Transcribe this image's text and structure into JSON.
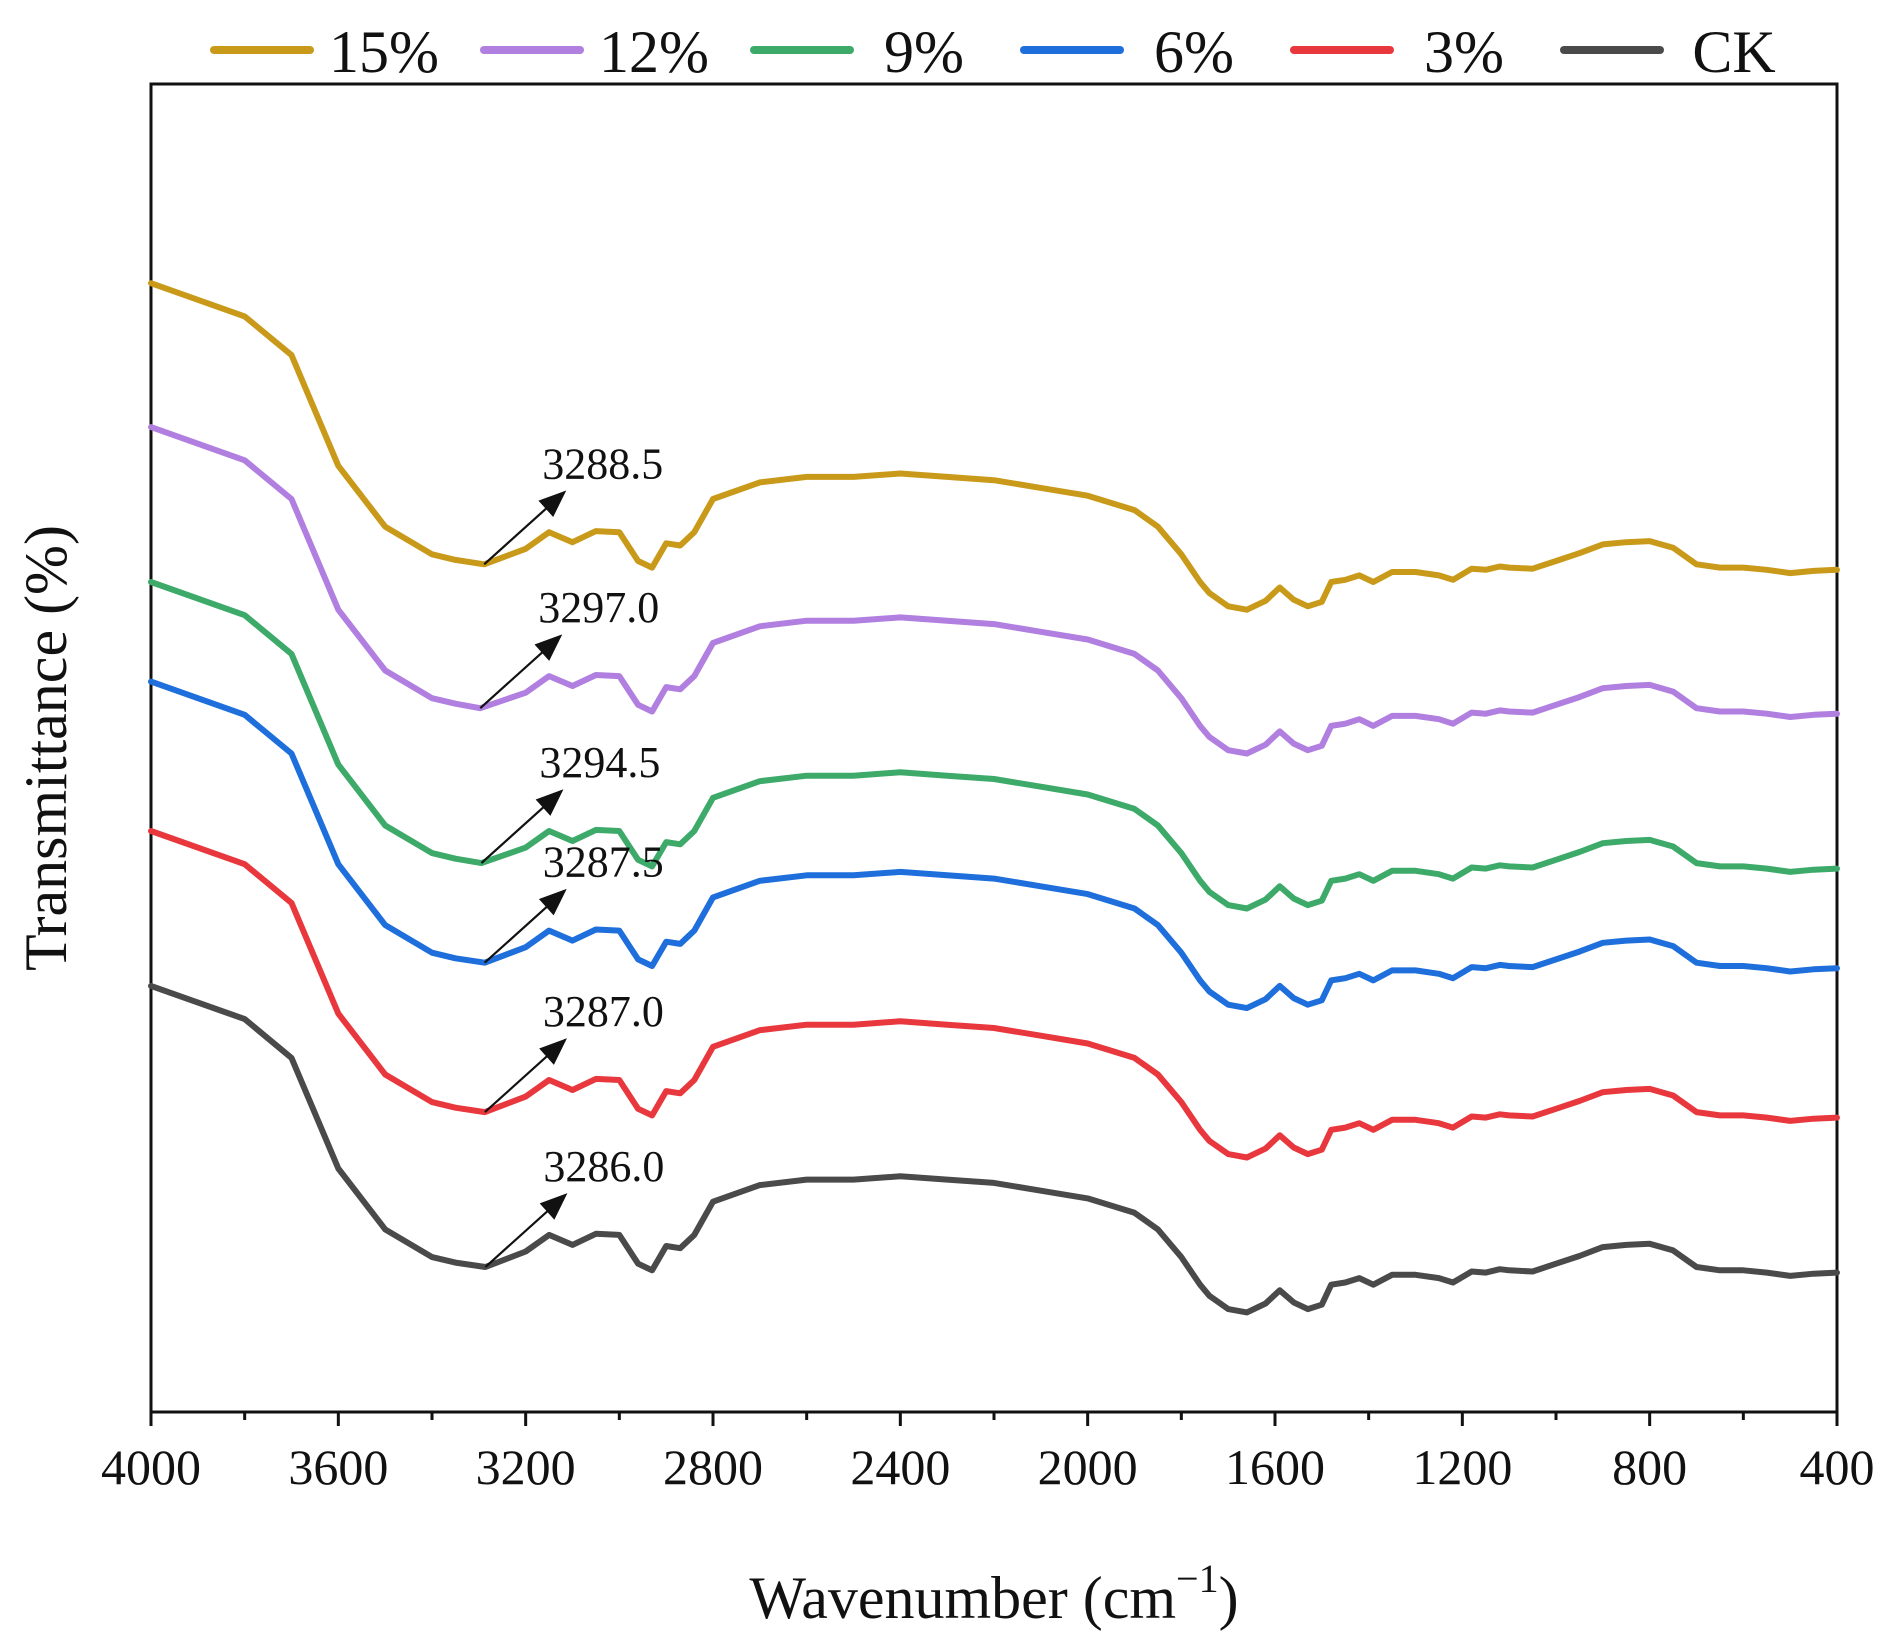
{
  "chart_data": {
    "type": "line",
    "title": "",
    "xlabel": "Wavenumber (cm",
    "xlabel_sup": "−1",
    "xlabel_close": ")",
    "ylabel": "Transmittance (%)",
    "xlim": [
      4000,
      400
    ],
    "x_ticks": [
      "4000",
      "3600",
      "3200",
      "2800",
      "2400",
      "2000",
      "1600",
      "1200",
      "800",
      "400"
    ],
    "y_ticks_labeled": false,
    "legend_position": "top",
    "series": [
      {
        "name": "15%",
        "color": "#C99A1A",
        "offset": 5,
        "peak_label": "3288.5",
        "peak_x": 3288.5,
        "x": [
          4000,
          3800,
          3700,
          3600,
          3500,
          3400,
          3350,
          3288.5,
          3200,
          3150,
          3100,
          3050,
          3000,
          2960,
          2930,
          2900,
          2870,
          2840,
          2800,
          2700,
          2600,
          2500,
          2400,
          2300,
          2200,
          2100,
          2000,
          1900,
          1850,
          1800,
          1760,
          1740,
          1700,
          1660,
          1620,
          1590,
          1560,
          1530,
          1500,
          1480,
          1450,
          1420,
          1390,
          1350,
          1300,
          1250,
          1220,
          1180,
          1150,
          1120,
          1100,
          1050,
          1000,
          950,
          900,
          850,
          800,
          750,
          700,
          650,
          600,
          550,
          500,
          450,
          400
        ],
        "y": [
          82.0,
          79.0,
          75.5,
          65.5,
          60.0,
          57.5,
          57.0,
          56.6,
          58.0,
          59.5,
          58.6,
          59.6,
          59.5,
          56.9,
          56.3,
          58.5,
          58.3,
          59.5,
          62.5,
          64.0,
          64.5,
          64.5,
          64.8,
          64.5,
          64.2,
          63.5,
          62.8,
          61.5,
          60.0,
          57.5,
          55.0,
          54.0,
          52.8,
          52.5,
          53.3,
          54.5,
          53.4,
          52.8,
          53.2,
          55.0,
          55.2,
          55.6,
          55.0,
          55.9,
          55.9,
          55.6,
          55.2,
          56.2,
          56.1,
          56.4,
          56.3,
          56.2,
          56.9,
          57.6,
          58.4,
          58.6,
          58.7,
          58.1,
          56.6,
          56.3,
          56.3,
          56.1,
          55.8,
          56.0,
          56.1
        ]
      },
      {
        "name": "12%",
        "color": "#B07FE0",
        "offset": 4,
        "peak_label": "3297.0",
        "peak_x": 3297.0,
        "x": [
          4000,
          3800,
          3700,
          3600,
          3500,
          3400,
          3350,
          3297.0,
          3200,
          3150,
          3100,
          3050,
          3000,
          2960,
          2930,
          2900,
          2870,
          2840,
          2800,
          2700,
          2600,
          2500,
          2400,
          2300,
          2200,
          2100,
          2000,
          1900,
          1850,
          1800,
          1760,
          1740,
          1700,
          1660,
          1620,
          1590,
          1560,
          1530,
          1500,
          1480,
          1450,
          1420,
          1390,
          1350,
          1300,
          1250,
          1220,
          1180,
          1150,
          1120,
          1100,
          1050,
          1000,
          950,
          900,
          850,
          800,
          750,
          700,
          650,
          600,
          550,
          500,
          450,
          400
        ],
        "y": [
          69.0,
          66.0,
          62.5,
          52.5,
          47.0,
          44.5,
          44.0,
          43.6,
          45.0,
          46.5,
          45.6,
          46.6,
          46.5,
          43.9,
          43.3,
          45.5,
          45.3,
          46.5,
          49.5,
          51.0,
          51.5,
          51.5,
          51.8,
          51.5,
          51.2,
          50.5,
          49.8,
          48.5,
          47.0,
          44.5,
          42.0,
          41.0,
          39.8,
          39.5,
          40.3,
          41.5,
          40.4,
          39.8,
          40.2,
          42.0,
          42.2,
          42.6,
          42.0,
          42.9,
          42.9,
          42.6,
          42.2,
          43.2,
          43.1,
          43.4,
          43.3,
          43.2,
          43.9,
          44.6,
          45.4,
          45.6,
          45.7,
          45.1,
          43.6,
          43.3,
          43.3,
          43.1,
          42.8,
          43.0,
          43.1
        ]
      },
      {
        "name": "9%",
        "color": "#3DAA6A",
        "offset": 3,
        "peak_label": "3294.5",
        "peak_x": 3294.5,
        "x": [
          4000,
          3800,
          3700,
          3600,
          3500,
          3400,
          3350,
          3294.5,
          3200,
          3150,
          3100,
          3050,
          3000,
          2960,
          2930,
          2900,
          2870,
          2840,
          2800,
          2700,
          2600,
          2500,
          2400,
          2300,
          2200,
          2100,
          2000,
          1900,
          1850,
          1800,
          1760,
          1740,
          1700,
          1660,
          1620,
          1590,
          1560,
          1530,
          1500,
          1480,
          1450,
          1420,
          1390,
          1350,
          1300,
          1250,
          1220,
          1180,
          1150,
          1120,
          1100,
          1050,
          1000,
          950,
          900,
          850,
          800,
          750,
          700,
          650,
          600,
          550,
          500,
          450,
          400
        ],
        "y": [
          55.0,
          52.0,
          48.5,
          38.5,
          33.0,
          30.5,
          30.0,
          29.6,
          31.0,
          32.5,
          31.6,
          32.6,
          32.5,
          29.9,
          29.3,
          31.5,
          31.3,
          32.5,
          35.5,
          37.0,
          37.5,
          37.5,
          37.8,
          37.5,
          37.2,
          36.5,
          35.8,
          34.5,
          33.0,
          30.5,
          28.0,
          27.0,
          25.8,
          25.5,
          26.3,
          27.5,
          26.4,
          25.8,
          26.2,
          28.0,
          28.2,
          28.6,
          28.0,
          28.9,
          28.9,
          28.6,
          28.2,
          29.2,
          29.1,
          29.4,
          29.3,
          29.2,
          29.9,
          30.6,
          31.4,
          31.6,
          31.7,
          31.1,
          29.6,
          29.3,
          29.3,
          29.1,
          28.8,
          29.0,
          29.1
        ]
      },
      {
        "name": "6%",
        "color": "#1E6FDB",
        "offset": 2,
        "peak_label": "3287.5",
        "peak_x": 3287.5,
        "x": [
          4000,
          3800,
          3700,
          3600,
          3500,
          3400,
          3350,
          3287.5,
          3200,
          3150,
          3100,
          3050,
          3000,
          2960,
          2930,
          2900,
          2870,
          2840,
          2800,
          2700,
          2600,
          2500,
          2400,
          2300,
          2200,
          2100,
          2000,
          1900,
          1850,
          1800,
          1760,
          1740,
          1700,
          1660,
          1620,
          1590,
          1560,
          1530,
          1500,
          1480,
          1450,
          1420,
          1390,
          1350,
          1300,
          1250,
          1220,
          1180,
          1150,
          1120,
          1100,
          1050,
          1000,
          950,
          900,
          850,
          800,
          750,
          700,
          650,
          600,
          550,
          500,
          450,
          400
        ],
        "y": [
          46.0,
          43.0,
          39.5,
          29.5,
          24.0,
          21.5,
          21.0,
          20.6,
          22.0,
          23.5,
          22.6,
          23.6,
          23.5,
          20.9,
          20.3,
          22.5,
          22.3,
          23.5,
          26.5,
          28.0,
          28.5,
          28.5,
          28.8,
          28.5,
          28.2,
          27.5,
          26.8,
          25.5,
          24.0,
          21.5,
          19.0,
          18.0,
          16.8,
          16.5,
          17.3,
          18.5,
          17.4,
          16.8,
          17.2,
          19.0,
          19.2,
          19.6,
          19.0,
          19.9,
          19.9,
          19.6,
          19.2,
          20.2,
          20.1,
          20.4,
          20.3,
          20.2,
          20.9,
          21.6,
          22.4,
          22.6,
          22.7,
          22.1,
          20.6,
          20.3,
          20.3,
          20.1,
          19.8,
          20.0,
          20.1
        ]
      },
      {
        "name": "3%",
        "color": "#E8383D",
        "offset": 1,
        "peak_label": "3287.0",
        "peak_x": 3287.0,
        "x": [
          4000,
          3800,
          3700,
          3600,
          3500,
          3400,
          3350,
          3287.0,
          3200,
          3150,
          3100,
          3050,
          3000,
          2960,
          2930,
          2900,
          2870,
          2840,
          2800,
          2700,
          2600,
          2500,
          2400,
          2300,
          2200,
          2100,
          2000,
          1900,
          1850,
          1800,
          1760,
          1740,
          1700,
          1660,
          1620,
          1590,
          1560,
          1530,
          1500,
          1480,
          1450,
          1420,
          1390,
          1350,
          1300,
          1250,
          1220,
          1180,
          1150,
          1120,
          1100,
          1050,
          1000,
          950,
          900,
          850,
          800,
          750,
          700,
          650,
          600,
          550,
          500,
          450,
          400
        ],
        "y": [
          32.5,
          29.5,
          26.0,
          16.0,
          10.5,
          8.0,
          7.5,
          7.1,
          8.5,
          10.0,
          9.1,
          10.1,
          10.0,
          7.4,
          6.8,
          9.0,
          8.8,
          10.0,
          13.0,
          14.5,
          15.0,
          15.0,
          15.3,
          15.0,
          14.7,
          14.0,
          13.3,
          12.0,
          10.5,
          8.0,
          5.5,
          4.5,
          3.3,
          3.0,
          3.8,
          5.0,
          3.9,
          3.3,
          3.7,
          5.5,
          5.7,
          6.1,
          5.5,
          6.4,
          6.4,
          6.1,
          5.7,
          6.7,
          6.6,
          6.9,
          6.8,
          6.7,
          7.4,
          8.1,
          8.9,
          9.1,
          9.2,
          8.6,
          7.1,
          6.8,
          6.8,
          6.6,
          6.3,
          6.5,
          6.6
        ]
      },
      {
        "name": "CK",
        "color": "#4A4A4A",
        "offset": 0,
        "peak_label": "3286.0",
        "peak_x": 3286.0,
        "x": [
          4000,
          3800,
          3700,
          3600,
          3500,
          3400,
          3350,
          3286.0,
          3200,
          3150,
          3100,
          3050,
          3000,
          2960,
          2930,
          2900,
          2870,
          2840,
          2800,
          2700,
          2600,
          2500,
          2400,
          2300,
          2200,
          2100,
          2000,
          1900,
          1850,
          1800,
          1760,
          1740,
          1700,
          1660,
          1620,
          1590,
          1560,
          1530,
          1500,
          1480,
          1450,
          1420,
          1390,
          1350,
          1300,
          1250,
          1220,
          1180,
          1150,
          1120,
          1100,
          1050,
          1000,
          950,
          900,
          850,
          800,
          750,
          700,
          650,
          600,
          550,
          500,
          450,
          400
        ],
        "y": [
          18.5,
          15.5,
          12.0,
          2.0,
          -3.5,
          -6.0,
          -6.5,
          -6.9,
          -5.5,
          -4.0,
          -4.9,
          -3.9,
          -4.0,
          -6.6,
          -7.2,
          -5.0,
          -5.2,
          -4.0,
          -1.0,
          0.5,
          1.0,
          1.0,
          1.3,
          1.0,
          0.7,
          0.0,
          -0.7,
          -2.0,
          -3.5,
          -6.0,
          -8.5,
          -9.5,
          -10.7,
          -11.0,
          -10.2,
          -9.0,
          -10.1,
          -10.7,
          -10.3,
          -8.5,
          -8.3,
          -7.9,
          -8.5,
          -7.6,
          -7.6,
          -7.9,
          -8.3,
          -7.3,
          -7.4,
          -7.1,
          -7.2,
          -7.3,
          -6.6,
          -5.9,
          -5.1,
          -4.9,
          -4.8,
          -5.4,
          -6.9,
          -7.2,
          -7.2,
          -7.4,
          -7.7,
          -7.5,
          -7.4
        ]
      }
    ],
    "ylim": [
      -20,
      100
    ]
  },
  "colors": {
    "axis": "#111111",
    "annotation_arrow": "#111111",
    "background": "#ffffff"
  }
}
